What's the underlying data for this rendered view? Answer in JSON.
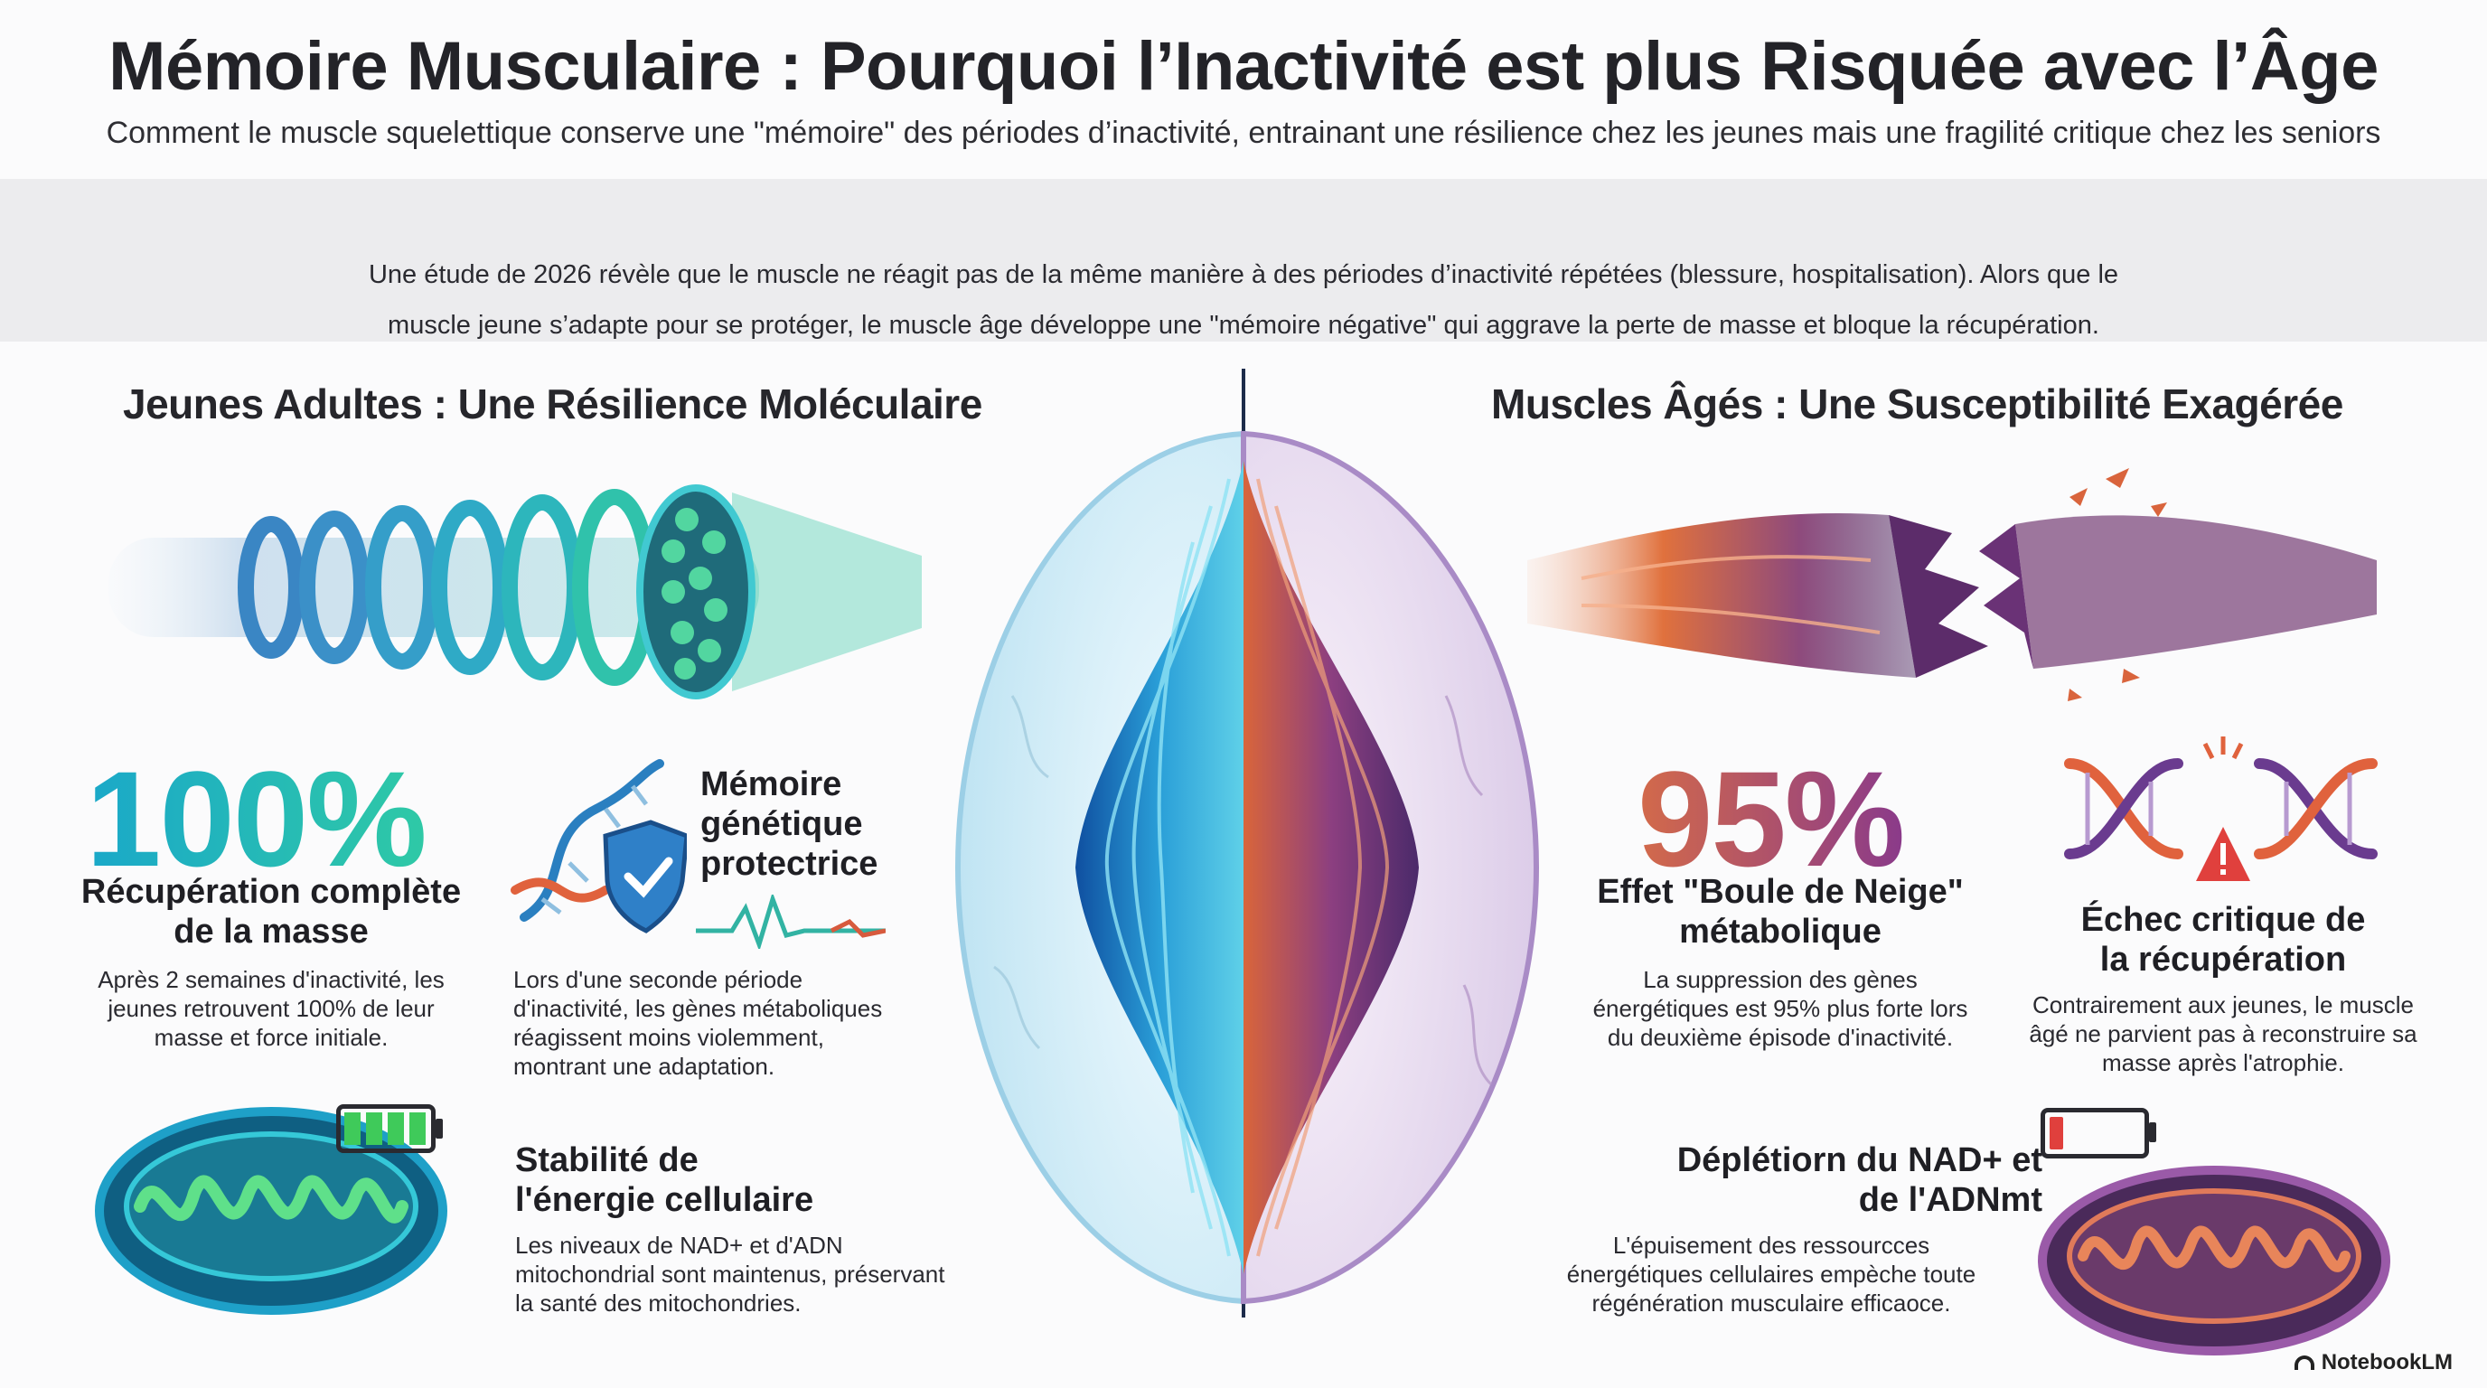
{
  "header": {
    "title": "Mémoire Musculaire : Pourquoi l’Inactivité est plus Risquée avec l’Âge",
    "subtitle": "Comment le muscle squelettique conserve une \"mémoire\" des périodes d’inactivité, entrainant une résilience chez les jeunes mais une fragilité critique chez les seniors"
  },
  "intro": {
    "line1": "Une étude de 2026 révèle que le muscle ne réagit pas de la même manière à des périodes d’inactivité répétées (blessure, hospitalisation). Alors que le",
    "line2": "muscle jeune s’adapte pour se protéger, le muscle âge développe une \"mémoire négative\" qui aggrave la perte de masse et bloque la récupération."
  },
  "left": {
    "title": "Jeunes Adultes : Une Résilience Moléculaire",
    "stat": {
      "value": "100%",
      "heading_line1": "Récupération complète",
      "heading_line2": "de la masse",
      "text_line1": "Après 2 semaines d'inactivité, les",
      "text_line2": "jeunes retrouvent 100% de leur",
      "text_line3": "masse et force initiale."
    },
    "memory": {
      "heading_line1": "Mémoire",
      "heading_line2": "génétique",
      "heading_line3": "protectrice",
      "text_line1": "Lors d'une seconde période",
      "text_line2": "d'inactivité, les gènes métaboliques",
      "text_line3": "réagissent moins violemment,",
      "text_line4": "montrant une adaptation."
    },
    "energy": {
      "heading_line1": "Stabilité de",
      "heading_line2": "l'énergie cellulaire",
      "text_line1": "Les niveaux de NAD+ et d'ADN",
      "text_line2": "mitochondrial sont maintenus, préservant",
      "text_line3": "la santé des mitochondries."
    }
  },
  "right": {
    "title": "Muscles Âgés : Une Susceptibilité Exagérée",
    "stat": {
      "value": "95%",
      "heading_line1": "Effet \"Boule de Neige\"",
      "heading_line2": "métabolique",
      "text_line1": "La suppression des gènes",
      "text_line2": "énergétiques est 95% plus forte lors",
      "text_line3": "du deuxième épisode d'inactivité."
    },
    "failure": {
      "heading_line1": "Échec critique de",
      "heading_line2": "la récupération",
      "text_line1": "Contrairement aux jeunes, le muscle",
      "text_line2": "âgé ne parvient pas à reconstruire sa",
      "text_line3": "masse après l'atrophie."
    },
    "depletion": {
      "heading_line1": "Déplétiorn du NAD+ et",
      "heading_line2": "de l'ADNmt",
      "text_line1": "L'épuisement des ressourcces",
      "text_line2": "énergétiques cellulaires empèche toute",
      "text_line3": "régénération musculaire efficaoce."
    }
  },
  "brand": {
    "name": "NotebookLM"
  },
  "colors": {
    "young_primary": "#1aa8c9",
    "young_secondary": "#2fc9a6",
    "old_primary": "#d36a4a",
    "old_secondary": "#8a3a8a",
    "intro_band": "#ececee"
  },
  "battery": {
    "young_level": 1.0,
    "old_level": 0.15
  }
}
